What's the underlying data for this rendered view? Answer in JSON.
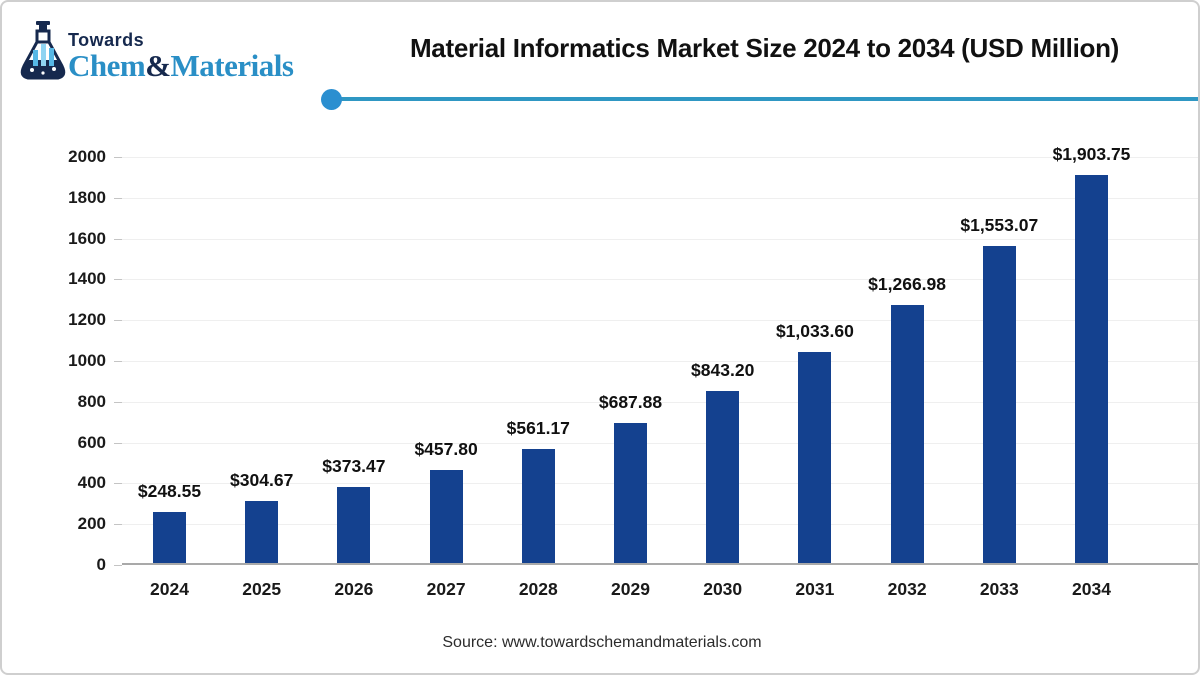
{
  "logo": {
    "towards": "Towards",
    "brand_chem": "Chem",
    "brand_amp": "&",
    "brand_materials": "Materials"
  },
  "header": {
    "title": "Material Informatics Market Size 2024 to 2034 (USD Million)"
  },
  "source": "Source: www.towardschemandmaterials.com",
  "chart_data": {
    "type": "bar",
    "title": "Material Informatics Market Size 2024 to 2034 (USD Million)",
    "categories": [
      "2024",
      "2025",
      "2026",
      "2027",
      "2028",
      "2029",
      "2030",
      "2031",
      "2032",
      "2033",
      "2034"
    ],
    "values": [
      248.55,
      304.67,
      373.47,
      457.8,
      561.17,
      687.88,
      843.2,
      1033.6,
      1266.98,
      1553.07,
      1903.75
    ],
    "value_labels": [
      "$248.55",
      "$304.67",
      "$373.47",
      "$457.80",
      "$561.17",
      "$687.88",
      "$843.20",
      "$1,033.60",
      "$1,266.98",
      "$1,553.07",
      "$1,903.75"
    ],
    "xlabel": "",
    "ylabel": "",
    "ylim": [
      0,
      2000
    ],
    "yticks": [
      0,
      200,
      400,
      600,
      800,
      1000,
      1200,
      1400,
      1600,
      1800,
      2000
    ],
    "grid": true,
    "legend": false,
    "bar_color": "#14418f"
  },
  "colors": {
    "bar": "#14418f",
    "accent_line": "#2f97c3",
    "accent_dot": "#2b8fd0",
    "brand_blue": "#2a8fc6",
    "brand_navy": "#16294e",
    "grid": "#efefef",
    "axis_line": "#a9a9a9",
    "text": "#1a1a1a"
  }
}
